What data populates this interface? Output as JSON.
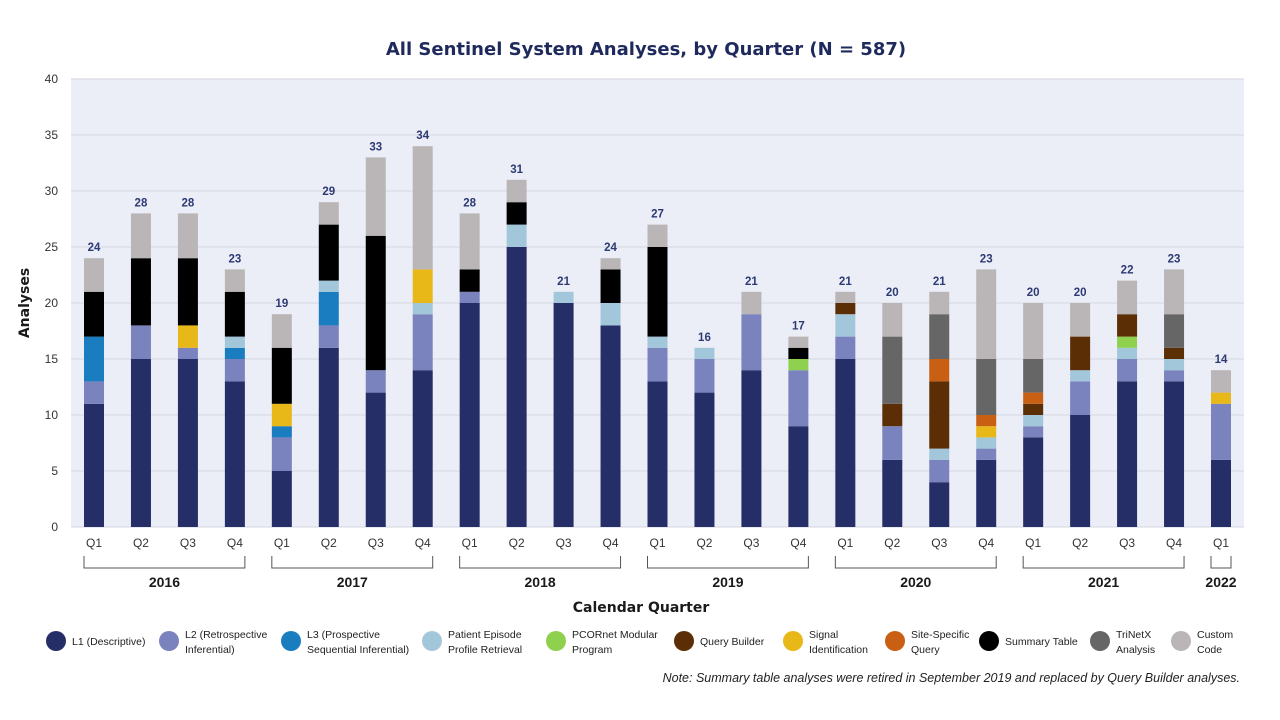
{
  "chart_data": {
    "type": "bar",
    "stacked": true,
    "title": "All Sentinel System Analyses, by Quarter (N = 587)",
    "xlabel": "Calendar Quarter",
    "ylabel": "Analyses",
    "ylim": [
      0,
      40
    ],
    "yticks": [
      0,
      5,
      10,
      15,
      20,
      25,
      30,
      35,
      40
    ],
    "grid": true,
    "legend_position": "bottom",
    "note": "Note: Summary table analyses were retired in September 2019 and replaced by Query Builder analyses.",
    "years": [
      {
        "label": "2016",
        "quarters": [
          "Q1",
          "Q2",
          "Q3",
          "Q4"
        ]
      },
      {
        "label": "2017",
        "quarters": [
          "Q1",
          "Q2",
          "Q3",
          "Q4"
        ]
      },
      {
        "label": "2018",
        "quarters": [
          "Q1",
          "Q2",
          "Q3",
          "Q4"
        ]
      },
      {
        "label": "2019",
        "quarters": [
          "Q1",
          "Q2",
          "Q3",
          "Q4"
        ]
      },
      {
        "label": "2020",
        "quarters": [
          "Q1",
          "Q2",
          "Q3",
          "Q4"
        ]
      },
      {
        "label": "2021",
        "quarters": [
          "Q1",
          "Q2",
          "Q3",
          "Q4"
        ]
      },
      {
        "label": "2022",
        "quarters": [
          "Q1"
        ]
      }
    ],
    "categories": [
      "2016 Q1",
      "2016 Q2",
      "2016 Q3",
      "2016 Q4",
      "2017 Q1",
      "2017 Q2",
      "2017 Q3",
      "2017 Q4",
      "2018 Q1",
      "2018 Q2",
      "2018 Q3",
      "2018 Q4",
      "2019 Q1",
      "2019 Q2",
      "2019 Q3",
      "2019 Q4",
      "2020 Q1",
      "2020 Q2",
      "2020 Q3",
      "2020 Q4",
      "2021 Q1",
      "2021 Q2",
      "2021 Q3",
      "2021 Q4",
      "2022 Q1"
    ],
    "totals": [
      24,
      28,
      28,
      23,
      19,
      29,
      33,
      34,
      28,
      31,
      21,
      24,
      27,
      16,
      21,
      17,
      21,
      20,
      21,
      23,
      20,
      20,
      22,
      23,
      14
    ],
    "series": [
      {
        "name": "L1 (Descriptive)",
        "color": "#252e66",
        "values": [
          11,
          15,
          15,
          13,
          5,
          16,
          12,
          14,
          20,
          25,
          20,
          18,
          13,
          12,
          14,
          9,
          15,
          6,
          4,
          6,
          8,
          10,
          13,
          13,
          6
        ]
      },
      {
        "name": "L2 (Retrospective Inferential)",
        "color": "#7a83be",
        "values": [
          2,
          3,
          1,
          2,
          3,
          2,
          2,
          5,
          1,
          0,
          0,
          0,
          3,
          3,
          5,
          5,
          2,
          3,
          2,
          1,
          1,
          3,
          2,
          1,
          5
        ]
      },
      {
        "name": "L3 (Prospective Sequential Inferential)",
        "color": "#1a7dc0",
        "values": [
          4,
          0,
          0,
          1,
          1,
          3,
          0,
          0,
          0,
          0,
          0,
          0,
          0,
          0,
          0,
          0,
          0,
          0,
          0,
          0,
          0,
          0,
          0,
          0,
          0
        ]
      },
      {
        "name": "Patient Episode Profile Retrieval",
        "color": "#a3c7da",
        "values": [
          0,
          0,
          0,
          1,
          0,
          1,
          0,
          1,
          0,
          2,
          1,
          2,
          1,
          1,
          0,
          0,
          2,
          0,
          1,
          1,
          1,
          1,
          1,
          1,
          0
        ]
      },
      {
        "name": "PCORnet Modular Program",
        "color": "#8fd14f",
        "values": [
          0,
          0,
          0,
          0,
          0,
          0,
          0,
          0,
          0,
          0,
          0,
          0,
          0,
          0,
          0,
          1,
          0,
          0,
          0,
          0,
          0,
          0,
          1,
          0,
          0
        ]
      },
      {
        "name": "Query Builder",
        "color": "#5c2e06",
        "values": [
          0,
          0,
          0,
          0,
          0,
          0,
          0,
          0,
          0,
          0,
          0,
          0,
          0,
          0,
          0,
          0,
          1,
          2,
          6,
          0,
          1,
          3,
          2,
          1,
          0
        ]
      },
      {
        "name": "Signal Identification",
        "color": "#e8b818",
        "values": [
          0,
          0,
          2,
          0,
          2,
          0,
          0,
          3,
          0,
          0,
          0,
          0,
          0,
          0,
          0,
          0,
          0,
          0,
          0,
          1,
          0,
          0,
          0,
          0,
          1
        ]
      },
      {
        "name": "Site-Specific Query",
        "color": "#c95f12",
        "values": [
          0,
          0,
          0,
          0,
          0,
          0,
          0,
          0,
          0,
          0,
          0,
          0,
          0,
          0,
          0,
          0,
          0,
          0,
          2,
          1,
          1,
          0,
          0,
          0,
          0
        ]
      },
      {
        "name": "Summary Table",
        "color": "#000000",
        "values": [
          4,
          6,
          6,
          4,
          5,
          5,
          12,
          0,
          2,
          2,
          0,
          3,
          8,
          0,
          0,
          1,
          0,
          0,
          0,
          0,
          0,
          0,
          0,
          0,
          0
        ]
      },
      {
        "name": "TriNetX Analysis",
        "color": "#666666",
        "values": [
          0,
          0,
          0,
          0,
          0,
          0,
          0,
          0,
          0,
          0,
          0,
          0,
          0,
          0,
          0,
          0,
          0,
          6,
          4,
          5,
          3,
          0,
          0,
          3,
          0
        ]
      },
      {
        "name": "Custom Code",
        "color": "#bab6b7",
        "values": [
          3,
          4,
          4,
          2,
          3,
          2,
          7,
          11,
          5,
          2,
          0,
          1,
          2,
          0,
          2,
          1,
          1,
          3,
          2,
          8,
          5,
          3,
          3,
          4,
          2
        ]
      }
    ],
    "legend_lines": [
      [
        "L1 (Descriptive)"
      ],
      [
        "L2 (Retrospective",
        "Inferential)"
      ],
      [
        "L3 (Prospective",
        "Sequential Inferential)"
      ],
      [
        "Patient Episode",
        "Profile Retrieval"
      ],
      [
        "PCORnet Modular",
        "Program"
      ],
      [
        "Query Builder"
      ],
      [
        "Signal",
        "Identification"
      ],
      [
        "Site-Specific",
        "Query"
      ],
      [
        "Summary Table"
      ],
      [
        "TriNetX",
        "Analysis"
      ],
      [
        "Custom",
        "Code"
      ]
    ]
  },
  "colors": {
    "title": "#1f2a5c",
    "total_label": "#2d3a73",
    "plot_background": "#eceef7",
    "gridline": "#d3d6e2"
  }
}
